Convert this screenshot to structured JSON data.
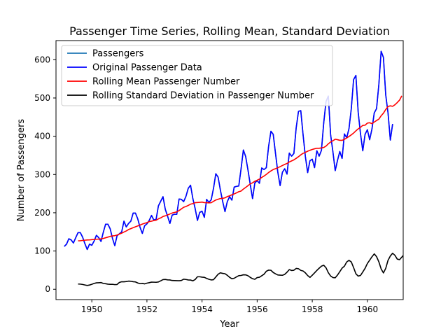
{
  "chart_data": {
    "type": "line",
    "title": "Passenger Time Series, Rolling Mean, Standard Deviation",
    "xlabel": "Year",
    "ylabel": "Number of Passengers",
    "xlim": [
      1948.7,
      1961.3
    ],
    "ylim": [
      -27,
      650
    ],
    "x_ticks": [
      1950,
      1952,
      1954,
      1956,
      1958,
      1960
    ],
    "y_ticks": [
      0,
      100,
      200,
      300,
      400,
      500,
      600
    ],
    "legend_position": "top-left",
    "x_start": 1949.0,
    "x_step": 0.08333,
    "series": [
      {
        "name": "Passengers",
        "color": "#1f77b4",
        "values": [
          112,
          118,
          132,
          129,
          121,
          135,
          148,
          148,
          136,
          119,
          104,
          118,
          115,
          126,
          141,
          135,
          125,
          149,
          170,
          170,
          158,
          133,
          114,
          140,
          145,
          150,
          178,
          163,
          172,
          178,
          199,
          199,
          184,
          162,
          146,
          166,
          171,
          180,
          193,
          181,
          183,
          218,
          230,
          242,
          209,
          191,
          172,
          194,
          196,
          196,
          236,
          235,
          229,
          243,
          264,
          272,
          237,
          211,
          180,
          201,
          204,
          188,
          235,
          227,
          234,
          264,
          302,
          293,
          259,
          229,
          203,
          229,
          242,
          233,
          267,
          269,
          270,
          315,
          364,
          347,
          312,
          274,
          237,
          278,
          284,
          277,
          317,
          313,
          318,
          374,
          413,
          405,
          355,
          306,
          271,
          306,
          315,
          301,
          356,
          348,
          355,
          422,
          465,
          467,
          404,
          347,
          305,
          336,
          340,
          318,
          362,
          348,
          363,
          435,
          491,
          505,
          404,
          359,
          310,
          337,
          360,
          342,
          406,
          396,
          420,
          472,
          548,
          559,
          463,
          407,
          362,
          405,
          417,
          391,
          419,
          461,
          472,
          535,
          622,
          606,
          508,
          461,
          390,
          432
        ]
      },
      {
        "name": "Original Passenger Data",
        "color": "#0000ff",
        "values": [
          112,
          118,
          132,
          129,
          121,
          135,
          148,
          148,
          136,
          119,
          104,
          118,
          115,
          126,
          141,
          135,
          125,
          149,
          170,
          170,
          158,
          133,
          114,
          140,
          145,
          150,
          178,
          163,
          172,
          178,
          199,
          199,
          184,
          162,
          146,
          166,
          171,
          180,
          193,
          181,
          183,
          218,
          230,
          242,
          209,
          191,
          172,
          194,
          196,
          196,
          236,
          235,
          229,
          243,
          264,
          272,
          237,
          211,
          180,
          201,
          204,
          188,
          235,
          227,
          234,
          264,
          302,
          293,
          259,
          229,
          203,
          229,
          242,
          233,
          267,
          269,
          270,
          315,
          364,
          347,
          312,
          274,
          237,
          278,
          284,
          277,
          317,
          313,
          318,
          374,
          413,
          405,
          355,
          306,
          271,
          306,
          315,
          301,
          356,
          348,
          355,
          422,
          465,
          467,
          404,
          347,
          305,
          336,
          340,
          318,
          362,
          348,
          363,
          435,
          491,
          505,
          404,
          359,
          310,
          337,
          360,
          342,
          406,
          396,
          420,
          472,
          548,
          559,
          463,
          407,
          362,
          405,
          417,
          391,
          419,
          461,
          472,
          535,
          622,
          606,
          508,
          461,
          390,
          432
        ]
      },
      {
        "name": "Rolling Mean Passenger Number",
        "color": "#ff0000",
        "values": [
          null,
          null,
          null,
          null,
          null,
          null,
          126.7,
          126.9,
          127.6,
          128.3,
          128.8,
          129.0,
          129.8,
          130.2,
          130.8,
          131.2,
          131.8,
          132.8,
          134.6,
          136.4,
          138.2,
          139.4,
          140.1,
          141.8,
          144.3,
          146.6,
          149.7,
          152.4,
          156.1,
          158.5,
          161.0,
          163.3,
          165.5,
          167.8,
          170.4,
          172.5,
          174.3,
          176.8,
          178.0,
          179.6,
          180.6,
          184.1,
          186.6,
          190.2,
          192.0,
          194.5,
          196.8,
          199.3,
          200.8,
          202.3,
          205.7,
          210.1,
          214.3,
          216.3,
          219.2,
          222.5,
          223.9,
          226.3,
          226.8,
          227.3,
          227.9,
          226.4,
          226.3,
          225.8,
          226.2,
          229.9,
          233.3,
          235.3,
          237.2,
          237.8,
          239.0,
          242.3,
          244.3,
          247.0,
          249.3,
          252.0,
          255.0,
          256.7,
          261.8,
          266.2,
          270.8,
          275.5,
          278.2,
          282.3,
          285.0,
          288.0,
          292.3,
          296.0,
          300.3,
          305.2,
          309.3,
          313.0,
          315.1,
          317.6,
          320.5,
          323.5,
          326.3,
          328.8,
          332.7,
          335.5,
          338.3,
          342.3,
          346.6,
          351.4,
          355.3,
          357.8,
          360.9,
          363.3,
          365.4,
          367.2,
          368.7,
          368.6,
          369.5,
          370.6,
          374.2,
          380.2,
          385.0,
          388.3,
          392.2,
          391.0,
          389.4,
          389.3,
          391.8,
          395.6,
          399.4,
          403.6,
          408.3,
          414.1,
          419.2,
          423.2,
          428.3,
          428.8,
          434.3,
          435.3,
          432.9,
          437.1,
          441.0,
          444.8,
          453.5,
          460.3,
          469.8,
          477.8,
          479.5,
          478.2,
          482.2,
          488.0,
          494.3,
          505.6
        ]
      },
      {
        "name": "Rolling Standard Deviation in Passenger Number",
        "color": "#000000",
        "values": [
          null,
          null,
          null,
          null,
          null,
          null,
          13.7,
          13.5,
          12.6,
          11.2,
          9.9,
          11.1,
          13.1,
          15.3,
          16.8,
          17.1,
          17.5,
          15.3,
          14.5,
          13.3,
          13.0,
          13.0,
          12.1,
          12.5,
          17.8,
          19.6,
          19.5,
          20.2,
          21.3,
          21.0,
          19.8,
          19.2,
          16.5,
          14.6,
          15.4,
          14.1,
          16.0,
          17.2,
          18.6,
          18.5,
          18.3,
          19.1,
          22.1,
          25.3,
          25.7,
          24.6,
          24.3,
          22.9,
          22.7,
          22.6,
          22.3,
          23.0,
          26.4,
          25.6,
          24.4,
          24.2,
          22.0,
          25.5,
          32.7,
          32.7,
          31.7,
          31.2,
          28.3,
          26.1,
          24.4,
          25.1,
          32.1,
          39.3,
          43.0,
          41.5,
          40.7,
          36.5,
          31.3,
          27.5,
          28.8,
          32.4,
          35.6,
          36.1,
          37.8,
          37.7,
          35.5,
          31.1,
          27.6,
          26.0,
          30.6,
          31.4,
          35.3,
          39.4,
          47.1,
          50.1,
          49.6,
          43.9,
          40.4,
          37.4,
          37.0,
          36.6,
          38.9,
          44.6,
          51.4,
          49.1,
          49.8,
          54.5,
          53.7,
          49.4,
          47.8,
          42.9,
          35.9,
          31.0,
          36.7,
          42.9,
          49.2,
          55.1,
          60.3,
          62.8,
          56.2,
          43.3,
          34.6,
          30.6,
          30.0,
          37.2,
          46.1,
          55.3,
          60.3,
          71.4,
          75.6,
          71.5,
          56.7,
          40.5,
          34.4,
          36.1,
          45.2,
          54.7,
          67.4,
          76.0,
          84.9,
          92.5,
          85.3,
          71.8,
          53.2,
          42.7,
          54.7,
          75.7,
          87.0,
          94.1,
          88.8,
          79.0,
          77.3,
          84.0,
          91.5,
          97.3
        ]
      }
    ]
  }
}
